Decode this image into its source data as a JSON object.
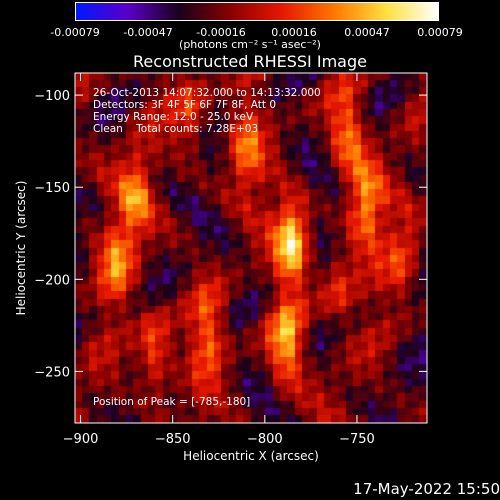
{
  "colorbar": {
    "tick_labels": [
      "-0.00079",
      "-0.00047",
      "-0.00016",
      "0.00016",
      "0.00047",
      "0.00079"
    ],
    "units": "(photons cm⁻² s⁻¹ asec⁻²)",
    "range": [
      -0.00079,
      0.00079
    ],
    "colors": [
      "#0018ff",
      "#5a00c8",
      "#1a001a",
      "#8a0000",
      "#e81800",
      "#ff7800",
      "#ffe040",
      "#ffffff"
    ]
  },
  "title": "Reconstructed RHESSI Image",
  "annotations": {
    "time": "26-Oct-2013 14:07:32.000 to 14:13:32.000",
    "detectors": "Detectors: 3F 4F 5F 6F 7F 8F, Att 0",
    "energy": "Energy Range: 12.0 - 25.0 keV",
    "clean": "Clean    Total counts: 7.28E+03",
    "peak": "Position of Peak = [-785,-180]"
  },
  "footer_date": "17-May-2022 15:50",
  "chart_data": {
    "type": "heatmap",
    "title": "Reconstructed RHESSI Image",
    "xlabel": "Heliocentric X (arcsec)",
    "ylabel": "Heliocentric Y (arcsec)",
    "xlim": [
      -903,
      -712
    ],
    "ylim": [
      -278,
      -88
    ],
    "x_ticks": [
      -900,
      -850,
      -800,
      -750
    ],
    "y_ticks": [
      -100,
      -150,
      -200,
      -250
    ],
    "x_tick_labels": [
      "−900",
      "−850",
      "−800",
      "−750"
    ],
    "y_tick_labels": [
      "−100",
      "−150",
      "−200",
      "−250"
    ],
    "peak": [
      -785,
      -180
    ],
    "sources": [
      {
        "x": -785,
        "y": -180,
        "w": 0.00079
      },
      {
        "x": -788,
        "y": -235,
        "w": 0.00062
      },
      {
        "x": -745,
        "y": -160,
        "w": 0.00058
      },
      {
        "x": -755,
        "y": -120,
        "w": 0.0005
      },
      {
        "x": -870,
        "y": -155,
        "w": 0.0005
      },
      {
        "x": -860,
        "y": -240,
        "w": 0.00052
      },
      {
        "x": -880,
        "y": -190,
        "w": 0.00045
      },
      {
        "x": -830,
        "y": -230,
        "w": 0.00045
      },
      {
        "x": -810,
        "y": -130,
        "w": 0.0004
      },
      {
        "x": -840,
        "y": -110,
        "w": 0.0004
      },
      {
        "x": -760,
        "y": -205,
        "w": 0.00035
      },
      {
        "x": -725,
        "y": -190,
        "w": 0.00035
      }
    ]
  }
}
